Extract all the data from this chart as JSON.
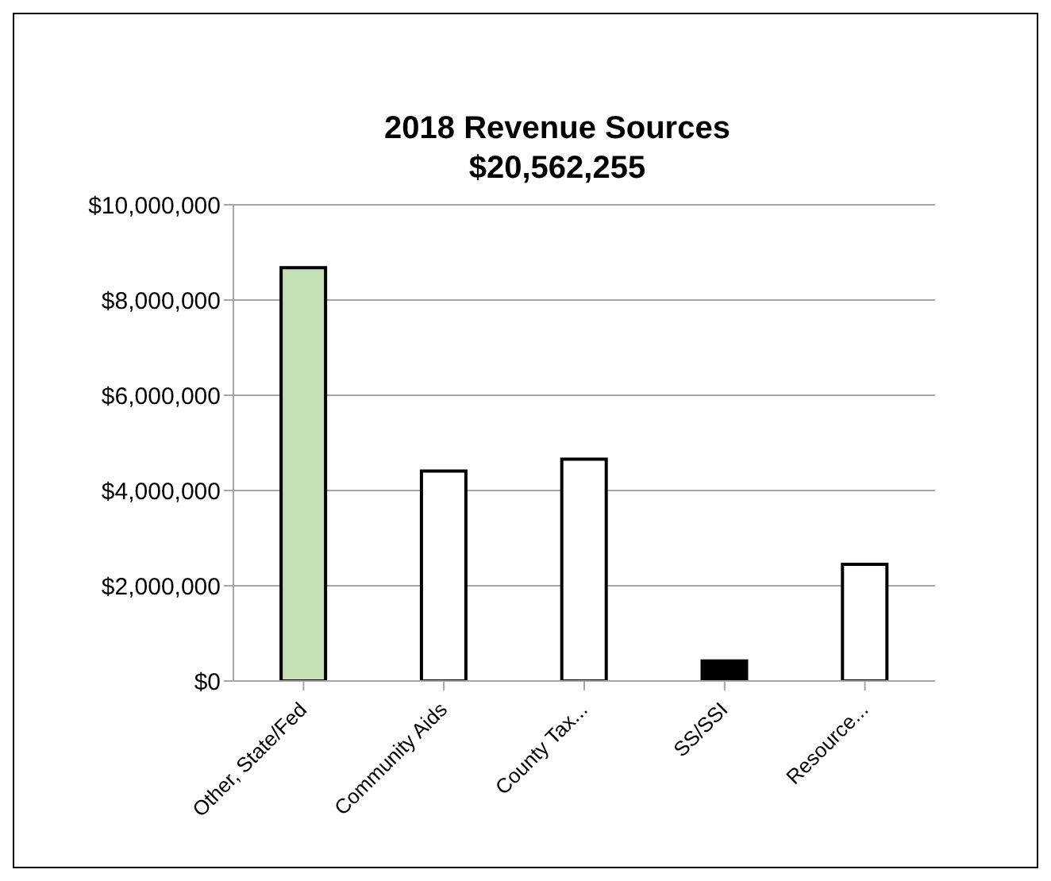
{
  "chart_data": {
    "type": "bar",
    "title": "2018 Revenue Sources",
    "subtitle": "$20,562,255",
    "categories": [
      "Other, State/Fed",
      "Community Aids",
      "County Tax...",
      "SS/SSI",
      "Resource..."
    ],
    "values": [
      8680000,
      4410000,
      4660000,
      420000,
      2450000
    ],
    "colors": [
      "#c5e0b4",
      "#ffffff",
      "#ffffff",
      "#000000",
      "#ffffff"
    ],
    "ylim": [
      0,
      10000000
    ],
    "yticks": [
      {
        "value": 0,
        "label": "$0"
      },
      {
        "value": 2000000,
        "label": "$2,000,000"
      },
      {
        "value": 4000000,
        "label": "$4,000,000"
      },
      {
        "value": 6000000,
        "label": "$6,000,000"
      },
      {
        "value": 8000000,
        "label": "$8,000,000"
      },
      {
        "value": 10000000,
        "label": "$10,000,000"
      }
    ],
    "grid": "y",
    "legend": false
  }
}
